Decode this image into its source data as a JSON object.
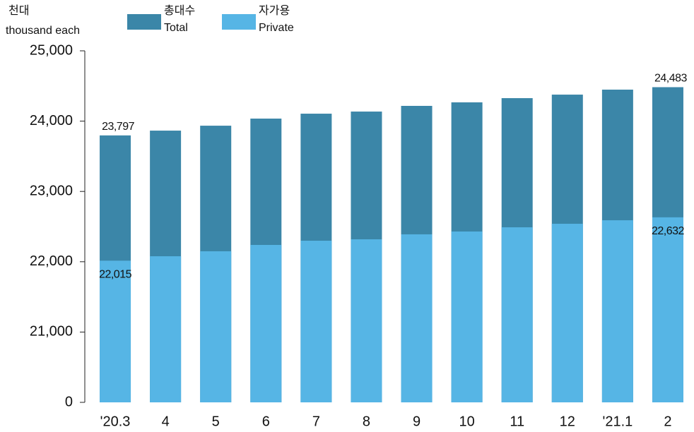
{
  "chart_data": {
    "type": "bar",
    "y_label_ko": "천대",
    "y_label": "thousand each",
    "categories": [
      "'20.3",
      "4",
      "5",
      "6",
      "7",
      "8",
      "9",
      "10",
      "11",
      "12",
      "'21.1",
      "2"
    ],
    "series": [
      {
        "name_ko": "총대수",
        "name": "Total",
        "color": "#3b86a8",
        "label_color": "#3b86a8",
        "values": [
          23797,
          23865,
          23935,
          24036,
          24106,
          24136,
          24217,
          24267,
          24327,
          24377,
          24448,
          24483
        ],
        "value_labels": [
          "23,797",
          null,
          null,
          null,
          null,
          null,
          null,
          null,
          null,
          null,
          null,
          "24,483"
        ]
      },
      {
        "name_ko": "자가용",
        "name": "Private",
        "color": "#56b5e5",
        "label_color": "#111111",
        "values": [
          22015,
          22078,
          22149,
          22239,
          22299,
          22319,
          22390,
          22430,
          22490,
          22540,
          22590,
          22632
        ],
        "value_labels": [
          "22,015",
          null,
          null,
          null,
          null,
          null,
          null,
          null,
          null,
          null,
          null,
          "22,632"
        ]
      }
    ],
    "ylim": [
      20000,
      25000
    ],
    "axis_break": true,
    "yticks": [
      0,
      {
        "value": 21000,
        "label": "21,000"
      },
      {
        "value": 22000,
        "label": "22,000"
      },
      {
        "value": 23000,
        "label": "23,000"
      },
      {
        "value": 24000,
        "label": "24,000"
      },
      {
        "value": 25000,
        "label": "25,000"
      }
    ]
  }
}
